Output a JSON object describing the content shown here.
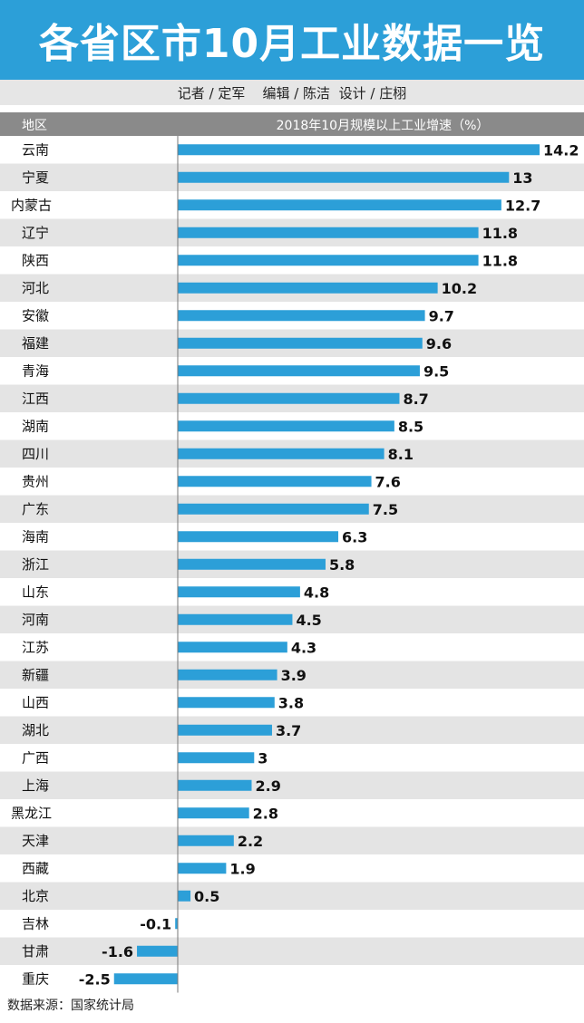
{
  "title": "各省区市10月工业数据一览",
  "credits": {
    "reporter": "记者 / 定军",
    "editor": "编辑 / 陈洁",
    "design": "设计 / 庄栩"
  },
  "header": {
    "region_label": "地区",
    "metric_label": "2018年10月规模以上工业增速（%）"
  },
  "source": "数据来源：国家统计局",
  "colors": {
    "bar": "#2c9fd8",
    "title_bg": "#2c9fd8",
    "stripe": "#e4e4e4",
    "header_bg": "#8a8a8a"
  },
  "chart_data": {
    "type": "bar",
    "orientation": "horizontal",
    "title": "2018年10月规模以上工业增速（%）",
    "categories": [
      "云南",
      "宁夏",
      "内蒙古",
      "辽宁",
      "陕西",
      "河北",
      "安徽",
      "福建",
      "青海",
      "江西",
      "湖南",
      "四川",
      "贵州",
      "广东",
      "海南",
      "浙江",
      "山东",
      "河南",
      "江苏",
      "新疆",
      "山西",
      "湖北",
      "广西",
      "上海",
      "黑龙江",
      "天津",
      "西藏",
      "北京",
      "吉林",
      "甘肃",
      "重庆"
    ],
    "values": [
      14.2,
      13,
      12.7,
      11.8,
      11.8,
      10.2,
      9.7,
      9.6,
      9.5,
      8.7,
      8.5,
      8.1,
      7.6,
      7.5,
      6.3,
      5.8,
      4.8,
      4.5,
      4.3,
      3.9,
      3.8,
      3.7,
      3,
      2.9,
      2.8,
      2.2,
      1.9,
      0.5,
      -0.1,
      -1.6,
      -2.5
    ],
    "labels": [
      "14.2",
      "13",
      "12.7",
      "11.8",
      "11.8",
      "10.2",
      "9.7",
      "9.6",
      "9.5",
      "8.7",
      "8.5",
      "8.1",
      "7.6",
      "7.5",
      "6.3",
      "5.8",
      "4.8",
      "4.5",
      "4.3",
      "3.9",
      "3.8",
      "3.7",
      "3",
      "2.9",
      "2.8",
      "2.2",
      "1.9",
      "0.5",
      "-0.1",
      "-1.6",
      "-2.5"
    ]
  }
}
